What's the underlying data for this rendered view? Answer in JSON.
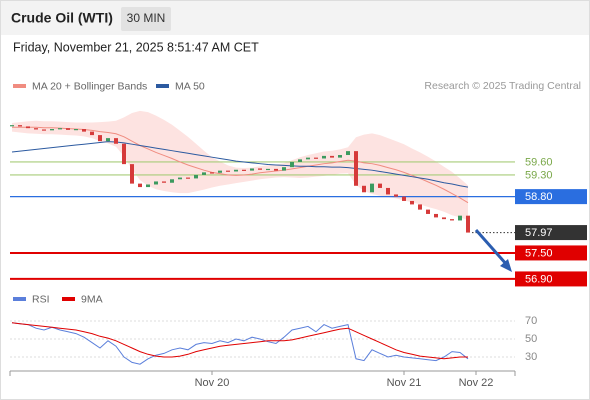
{
  "header": {
    "title": "Crude Oil (WTI)",
    "interval": "30 MIN",
    "timestamp": "Friday, November 21, 2025 8:51:47 AM CET",
    "credit": "Research © 2025 Trading Central"
  },
  "chart_data": [
    {
      "type": "candlestick",
      "up_color": "#3c9a5f",
      "down_color": "#d63a3a",
      "values": [
        60.45,
        60.42,
        60.38,
        60.35,
        60.33,
        60.36,
        60.38,
        60.34,
        60.36,
        60.3,
        60.22,
        60.08,
        60.15,
        60.02,
        59.55,
        59.1,
        59.02,
        59.08,
        59.15,
        59.12,
        59.2,
        59.24,
        59.22,
        59.3,
        59.36,
        59.35,
        59.4,
        59.38,
        59.42,
        59.4,
        59.45,
        59.42,
        59.44,
        59.4,
        59.48,
        59.6,
        59.66,
        59.7,
        59.68,
        59.74,
        59.7,
        59.76,
        59.85,
        59.05,
        58.9,
        59.1,
        59.0,
        58.85,
        58.8,
        58.7,
        58.62,
        58.5,
        58.4,
        58.32,
        58.28,
        58.25,
        58.36,
        57.97
      ],
      "ylim": [
        56.76,
        61.03
      ],
      "series": [
        {
          "name": "MA 20 + Bollinger Bands",
          "color": "#f08c80",
          "band_color": "#fde3e1",
          "values": [
            60.4,
            60.4,
            60.4,
            60.4,
            60.39,
            60.39,
            60.38,
            60.37,
            60.36,
            60.35,
            60.33,
            60.3,
            60.28,
            60.25,
            60.18,
            60.08,
            59.98,
            59.9,
            59.82,
            59.75,
            59.68,
            59.6,
            59.53,
            59.47,
            59.41,
            59.36,
            59.33,
            59.3,
            59.29,
            59.3,
            59.32,
            59.35,
            59.37,
            59.39,
            59.41,
            59.44,
            59.47,
            59.5,
            59.53,
            59.56,
            59.58,
            59.61,
            59.64,
            59.62,
            59.58,
            59.56,
            59.52,
            59.47,
            59.42,
            59.36,
            59.29,
            59.22,
            59.14,
            59.06,
            58.97,
            58.87,
            58.77,
            58.66
          ],
          "upper": [
            60.5,
            60.52,
            60.54,
            60.55,
            60.54,
            60.54,
            60.53,
            60.52,
            60.51,
            60.51,
            60.51,
            60.52,
            60.53,
            60.55,
            60.63,
            60.73,
            60.78,
            60.75,
            60.67,
            60.57,
            60.46,
            60.32,
            60.18,
            60.02,
            59.86,
            59.71,
            59.61,
            59.52,
            59.47,
            59.46,
            59.47,
            59.5,
            59.52,
            59.54,
            59.57,
            59.64,
            59.71,
            59.76,
            59.8,
            59.84,
            59.86,
            59.89,
            59.94,
            60.17,
            60.23,
            60.26,
            60.22,
            60.15,
            60.08,
            60.01,
            59.91,
            59.82,
            59.72,
            59.61,
            59.49,
            59.37,
            59.22,
            59.06
          ],
          "lower": [
            60.3,
            60.28,
            60.26,
            60.25,
            60.24,
            60.24,
            60.23,
            60.22,
            60.21,
            60.19,
            60.15,
            60.08,
            60.03,
            59.95,
            59.73,
            59.43,
            59.18,
            59.05,
            58.97,
            58.93,
            58.9,
            58.88,
            58.88,
            58.92,
            58.96,
            59.01,
            59.05,
            59.08,
            59.11,
            59.14,
            59.17,
            59.2,
            59.22,
            59.24,
            59.25,
            59.24,
            59.23,
            59.24,
            59.26,
            59.28,
            59.3,
            59.33,
            59.34,
            59.07,
            58.93,
            58.86,
            58.82,
            58.79,
            58.76,
            58.71,
            58.67,
            58.62,
            58.56,
            58.51,
            58.45,
            58.37,
            58.32,
            58.26
          ]
        },
        {
          "name": "MA 50",
          "color": "#2c5aa0",
          "values": [
            59.83,
            59.85,
            59.87,
            59.89,
            59.91,
            59.93,
            59.95,
            59.97,
            59.99,
            60.01,
            60.03,
            60.05,
            60.07,
            60.06,
            60.04,
            60.01,
            59.98,
            59.95,
            59.92,
            59.89,
            59.86,
            59.83,
            59.8,
            59.77,
            59.74,
            59.71,
            59.68,
            59.65,
            59.62,
            59.6,
            59.58,
            59.56,
            59.54,
            59.53,
            59.52,
            59.51,
            59.5,
            59.5,
            59.49,
            59.49,
            59.48,
            59.48,
            59.47,
            59.45,
            59.43,
            59.41,
            59.38,
            59.35,
            59.32,
            59.29,
            59.26,
            59.23,
            59.2,
            59.16,
            59.12,
            59.09,
            59.05,
            59.02
          ]
        }
      ],
      "levels": [
        {
          "value": 59.6,
          "label": "59.60",
          "color": "#a8cc7a",
          "box": false
        },
        {
          "value": 59.3,
          "label": "59.30",
          "color": "#a8cc7a",
          "box": false
        },
        {
          "value": 58.8,
          "label": "58.80",
          "color": "#2a6ee0",
          "box": true
        },
        {
          "value": 57.97,
          "label": "57.97",
          "color": "#333333",
          "box": true,
          "dotted": true
        },
        {
          "value": 57.5,
          "label": "57.50",
          "color": "#e00000",
          "box": true
        },
        {
          "value": 56.9,
          "label": "56.90",
          "color": "#e00000",
          "box": true
        }
      ]
    },
    {
      "type": "line",
      "categories": [
        null,
        null,
        null,
        null,
        null,
        null,
        null,
        null,
        null,
        null,
        null,
        null,
        null,
        null,
        null,
        null,
        null,
        null,
        null,
        null,
        null,
        null,
        null,
        null,
        null,
        "Nov 20",
        null,
        null,
        null,
        null,
        null,
        null,
        null,
        null,
        null,
        null,
        null,
        null,
        null,
        null,
        null,
        null,
        null,
        null,
        null,
        null,
        null,
        null,
        null,
        "Nov 21",
        null,
        null,
        null,
        null,
        null,
        null,
        null,
        null,
        "Nov 22",
        null
      ],
      "ylim": [
        15,
        80
      ],
      "yticks": [
        70,
        50,
        30
      ],
      "series": [
        {
          "name": "RSI",
          "color": "#5b7fdb",
          "values": [
            68,
            67,
            66,
            62,
            60,
            63,
            60,
            58,
            56,
            52,
            46,
            40,
            48,
            42,
            30,
            24,
            22,
            28,
            32,
            34,
            38,
            40,
            38,
            44,
            46,
            45,
            48,
            46,
            50,
            48,
            52,
            50,
            47,
            45,
            52,
            60,
            62,
            64,
            58,
            66,
            62,
            64,
            66,
            28,
            26,
            38,
            34,
            30,
            32,
            30,
            29,
            28,
            27,
            26,
            30,
            36,
            35,
            28,
            null,
            null
          ]
        },
        {
          "name": "9MA",
          "color": "#e00000",
          "values": [
            68,
            67,
            66,
            65,
            64,
            63,
            62,
            61,
            60,
            58,
            56,
            53,
            51,
            48,
            44,
            40,
            36,
            33,
            31,
            30,
            30,
            31,
            33,
            36,
            38,
            40,
            42,
            43,
            44,
            45,
            46,
            47,
            48,
            48,
            48,
            49,
            51,
            53,
            55,
            57,
            59,
            61,
            62,
            58,
            54,
            50,
            46,
            42,
            38,
            35,
            33,
            31,
            30,
            29,
            28,
            29,
            30,
            30,
            null,
            null
          ]
        }
      ]
    }
  ]
}
